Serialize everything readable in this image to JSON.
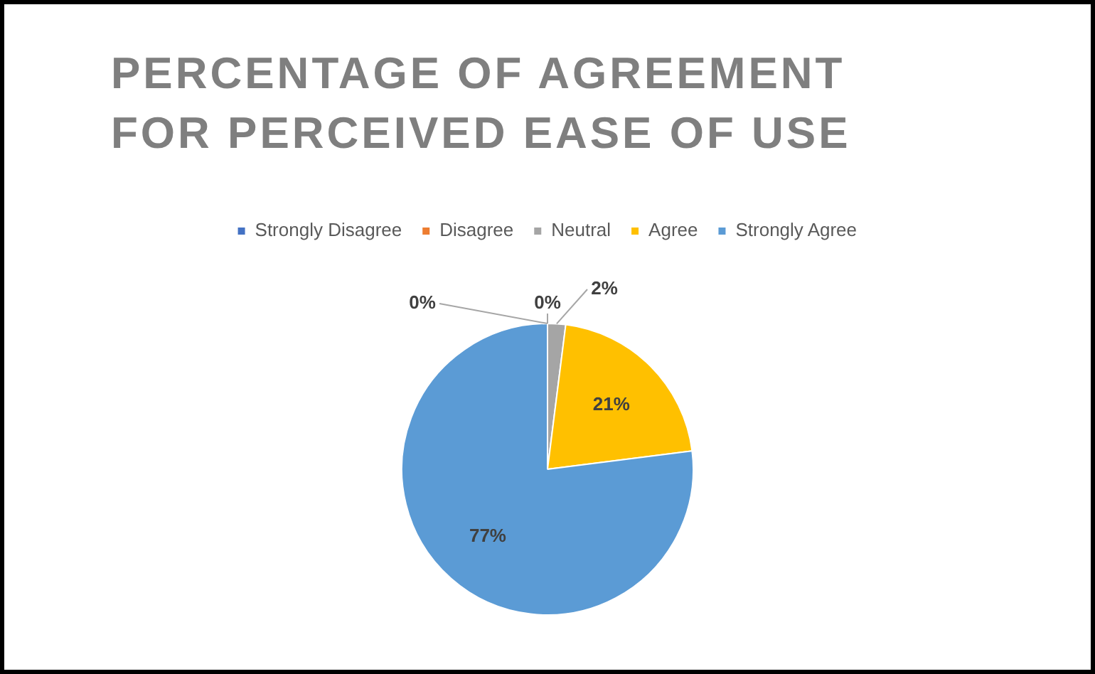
{
  "chart_data": {
    "type": "pie",
    "title": "PERCENTAGE OF AGREEMENT FOR PERCEIVED EASE OF USE",
    "categories": [
      "Strongly Disagree",
      "Disagree",
      "Neutral",
      "Agree",
      "Strongly Agree"
    ],
    "values": [
      0,
      0,
      2,
      21,
      77
    ],
    "colors": [
      "#4472c4",
      "#ed7d31",
      "#a5a5a5",
      "#ffc000",
      "#5b9bd5"
    ],
    "value_labels": [
      "0%",
      "0%",
      "2%",
      "21%",
      "77%"
    ],
    "legend": "top"
  }
}
